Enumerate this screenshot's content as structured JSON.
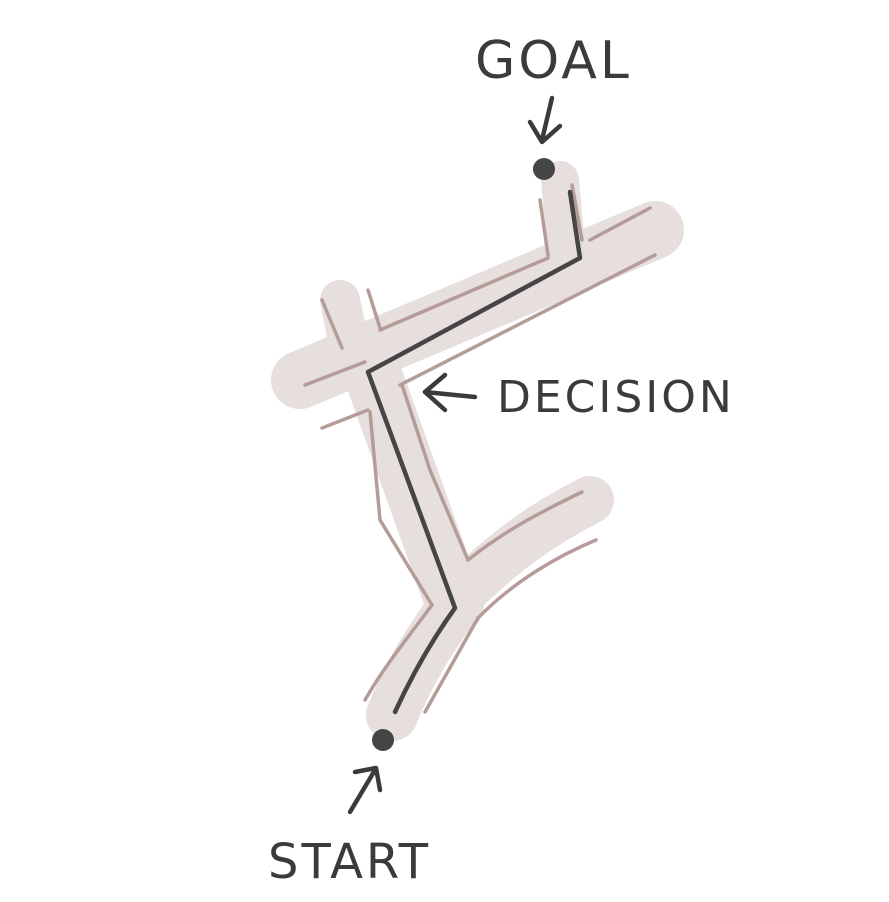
{
  "labels": {
    "goal": "GOAL",
    "decision": "DECISION",
    "start": "START"
  },
  "colors": {
    "road_fill": "#e6dfdd",
    "road_edge": "#b59c98",
    "route": "#454545",
    "ink": "#3b3b3b",
    "background": "#ffffff"
  },
  "icons": {
    "goal_marker": "dot-icon",
    "start_marker": "dot-icon",
    "goal_pointer": "arrow-down-icon",
    "decision_pointer": "arrow-left-icon",
    "start_pointer": "arrow-up-icon"
  }
}
